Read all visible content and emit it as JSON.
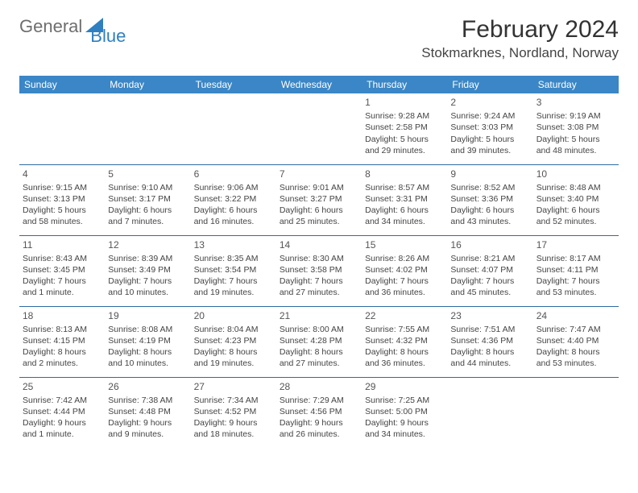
{
  "logo": {
    "part1": "General",
    "part2": "Blue",
    "icon_color": "#2f7fc1"
  },
  "header": {
    "month_title": "February 2024",
    "location": "Stokmarknes, Nordland, Norway"
  },
  "colors": {
    "header_bg": "#3b86c6",
    "header_text": "#ffffff",
    "row_border": "#2f6aa0",
    "body_text": "#444444",
    "background": "#ffffff"
  },
  "day_headers": [
    "Sunday",
    "Monday",
    "Tuesday",
    "Wednesday",
    "Thursday",
    "Friday",
    "Saturday"
  ],
  "weeks": [
    [
      {
        "day": "",
        "sunrise": "",
        "sunset": "",
        "daylight": ""
      },
      {
        "day": "",
        "sunrise": "",
        "sunset": "",
        "daylight": ""
      },
      {
        "day": "",
        "sunrise": "",
        "sunset": "",
        "daylight": ""
      },
      {
        "day": "",
        "sunrise": "",
        "sunset": "",
        "daylight": ""
      },
      {
        "day": "1",
        "sunrise": "Sunrise: 9:28 AM",
        "sunset": "Sunset: 2:58 PM",
        "daylight": "Daylight: 5 hours and 29 minutes."
      },
      {
        "day": "2",
        "sunrise": "Sunrise: 9:24 AM",
        "sunset": "Sunset: 3:03 PM",
        "daylight": "Daylight: 5 hours and 39 minutes."
      },
      {
        "day": "3",
        "sunrise": "Sunrise: 9:19 AM",
        "sunset": "Sunset: 3:08 PM",
        "daylight": "Daylight: 5 hours and 48 minutes."
      }
    ],
    [
      {
        "day": "4",
        "sunrise": "Sunrise: 9:15 AM",
        "sunset": "Sunset: 3:13 PM",
        "daylight": "Daylight: 5 hours and 58 minutes."
      },
      {
        "day": "5",
        "sunrise": "Sunrise: 9:10 AM",
        "sunset": "Sunset: 3:17 PM",
        "daylight": "Daylight: 6 hours and 7 minutes."
      },
      {
        "day": "6",
        "sunrise": "Sunrise: 9:06 AM",
        "sunset": "Sunset: 3:22 PM",
        "daylight": "Daylight: 6 hours and 16 minutes."
      },
      {
        "day": "7",
        "sunrise": "Sunrise: 9:01 AM",
        "sunset": "Sunset: 3:27 PM",
        "daylight": "Daylight: 6 hours and 25 minutes."
      },
      {
        "day": "8",
        "sunrise": "Sunrise: 8:57 AM",
        "sunset": "Sunset: 3:31 PM",
        "daylight": "Daylight: 6 hours and 34 minutes."
      },
      {
        "day": "9",
        "sunrise": "Sunrise: 8:52 AM",
        "sunset": "Sunset: 3:36 PM",
        "daylight": "Daylight: 6 hours and 43 minutes."
      },
      {
        "day": "10",
        "sunrise": "Sunrise: 8:48 AM",
        "sunset": "Sunset: 3:40 PM",
        "daylight": "Daylight: 6 hours and 52 minutes."
      }
    ],
    [
      {
        "day": "11",
        "sunrise": "Sunrise: 8:43 AM",
        "sunset": "Sunset: 3:45 PM",
        "daylight": "Daylight: 7 hours and 1 minute."
      },
      {
        "day": "12",
        "sunrise": "Sunrise: 8:39 AM",
        "sunset": "Sunset: 3:49 PM",
        "daylight": "Daylight: 7 hours and 10 minutes."
      },
      {
        "day": "13",
        "sunrise": "Sunrise: 8:35 AM",
        "sunset": "Sunset: 3:54 PM",
        "daylight": "Daylight: 7 hours and 19 minutes."
      },
      {
        "day": "14",
        "sunrise": "Sunrise: 8:30 AM",
        "sunset": "Sunset: 3:58 PM",
        "daylight": "Daylight: 7 hours and 27 minutes."
      },
      {
        "day": "15",
        "sunrise": "Sunrise: 8:26 AM",
        "sunset": "Sunset: 4:02 PM",
        "daylight": "Daylight: 7 hours and 36 minutes."
      },
      {
        "day": "16",
        "sunrise": "Sunrise: 8:21 AM",
        "sunset": "Sunset: 4:07 PM",
        "daylight": "Daylight: 7 hours and 45 minutes."
      },
      {
        "day": "17",
        "sunrise": "Sunrise: 8:17 AM",
        "sunset": "Sunset: 4:11 PM",
        "daylight": "Daylight: 7 hours and 53 minutes."
      }
    ],
    [
      {
        "day": "18",
        "sunrise": "Sunrise: 8:13 AM",
        "sunset": "Sunset: 4:15 PM",
        "daylight": "Daylight: 8 hours and 2 minutes."
      },
      {
        "day": "19",
        "sunrise": "Sunrise: 8:08 AM",
        "sunset": "Sunset: 4:19 PM",
        "daylight": "Daylight: 8 hours and 10 minutes."
      },
      {
        "day": "20",
        "sunrise": "Sunrise: 8:04 AM",
        "sunset": "Sunset: 4:23 PM",
        "daylight": "Daylight: 8 hours and 19 minutes."
      },
      {
        "day": "21",
        "sunrise": "Sunrise: 8:00 AM",
        "sunset": "Sunset: 4:28 PM",
        "daylight": "Daylight: 8 hours and 27 minutes."
      },
      {
        "day": "22",
        "sunrise": "Sunrise: 7:55 AM",
        "sunset": "Sunset: 4:32 PM",
        "daylight": "Daylight: 8 hours and 36 minutes."
      },
      {
        "day": "23",
        "sunrise": "Sunrise: 7:51 AM",
        "sunset": "Sunset: 4:36 PM",
        "daylight": "Daylight: 8 hours and 44 minutes."
      },
      {
        "day": "24",
        "sunrise": "Sunrise: 7:47 AM",
        "sunset": "Sunset: 4:40 PM",
        "daylight": "Daylight: 8 hours and 53 minutes."
      }
    ],
    [
      {
        "day": "25",
        "sunrise": "Sunrise: 7:42 AM",
        "sunset": "Sunset: 4:44 PM",
        "daylight": "Daylight: 9 hours and 1 minute."
      },
      {
        "day": "26",
        "sunrise": "Sunrise: 7:38 AM",
        "sunset": "Sunset: 4:48 PM",
        "daylight": "Daylight: 9 hours and 9 minutes."
      },
      {
        "day": "27",
        "sunrise": "Sunrise: 7:34 AM",
        "sunset": "Sunset: 4:52 PM",
        "daylight": "Daylight: 9 hours and 18 minutes."
      },
      {
        "day": "28",
        "sunrise": "Sunrise: 7:29 AM",
        "sunset": "Sunset: 4:56 PM",
        "daylight": "Daylight: 9 hours and 26 minutes."
      },
      {
        "day": "29",
        "sunrise": "Sunrise: 7:25 AM",
        "sunset": "Sunset: 5:00 PM",
        "daylight": "Daylight: 9 hours and 34 minutes."
      },
      {
        "day": "",
        "sunrise": "",
        "sunset": "",
        "daylight": ""
      },
      {
        "day": "",
        "sunrise": "",
        "sunset": "",
        "daylight": ""
      }
    ]
  ]
}
